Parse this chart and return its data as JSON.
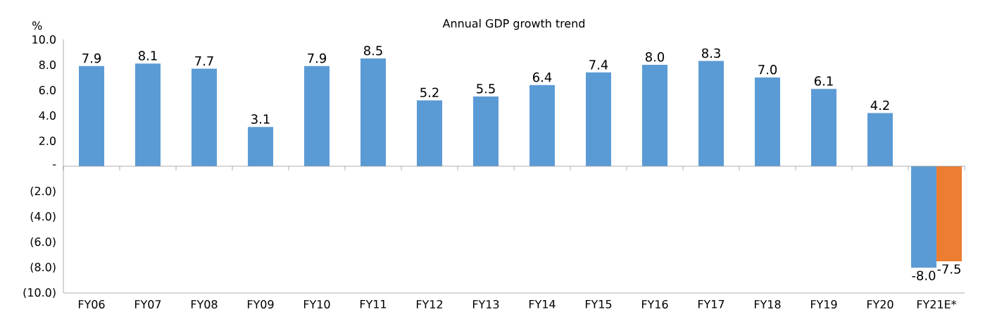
{
  "chart_data": {
    "type": "bar",
    "title": "Annual GDP growth trend",
    "ylabel": "%",
    "categories": [
      "FY06",
      "FY07",
      "FY08",
      "FY09",
      "FY10",
      "FY11",
      "FY12",
      "FY13",
      "FY14",
      "FY15",
      "FY16",
      "FY17",
      "FY18",
      "FY19",
      "FY20",
      "FY21E*"
    ],
    "series": [
      {
        "color": "#5b9bd5",
        "values": [
          7.9,
          8.1,
          7.7,
          3.1,
          7.9,
          8.5,
          5.2,
          5.5,
          6.4,
          7.4,
          8.0,
          8.3,
          7.0,
          6.1,
          4.2,
          -8.0
        ],
        "value_labels": [
          "7.9",
          "8.1",
          "7.7",
          "3.1",
          "7.9",
          "8.5",
          "5.2",
          "5.5",
          "6.4",
          "7.4",
          "8.0",
          "8.3",
          "7.0",
          "6.1",
          "4.2",
          "-8.0"
        ]
      },
      {
        "color": "#ed7d31",
        "values": [
          null,
          null,
          null,
          null,
          null,
          null,
          null,
          null,
          null,
          null,
          null,
          null,
          null,
          null,
          null,
          -7.5
        ],
        "value_labels": [
          null,
          null,
          null,
          null,
          null,
          null,
          null,
          null,
          null,
          null,
          null,
          null,
          null,
          null,
          null,
          "-7.5"
        ]
      }
    ],
    "ylim": [
      -10,
      10
    ],
    "yticks": [
      {
        "value": -10,
        "label": "(10.0)"
      },
      {
        "value": -8,
        "label": "(8.0)"
      },
      {
        "value": -6,
        "label": "(6.0)"
      },
      {
        "value": -4,
        "label": "(4.0)"
      },
      {
        "value": -2,
        "label": "(2.0)"
      },
      {
        "value": 0,
        "label": "-"
      },
      {
        "value": 2,
        "label": "2.0"
      },
      {
        "value": 4,
        "label": "4.0"
      },
      {
        "value": 6,
        "label": "6.0"
      },
      {
        "value": 8,
        "label": "8.0"
      },
      {
        "value": 10,
        "label": "10.0"
      }
    ]
  }
}
